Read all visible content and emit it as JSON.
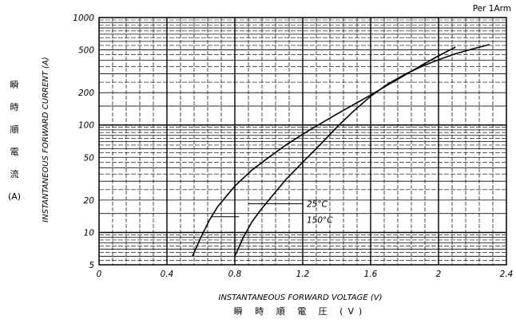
{
  "chart_data": {
    "type": "line",
    "note": "Per 1Arm",
    "xlabel": "INSTANTANEOUS FORWARD VOLTAGE (V)",
    "xlabel_jp": "瞬 時 順 電 圧 (V)",
    "ylabel": "INSTANTANEOUS FORWARD CURRENT (A)",
    "ylabel_jp": [
      "瞬",
      "時",
      "順",
      "電",
      "流",
      "(A)"
    ],
    "xlim": [
      0,
      2.4
    ],
    "ylim": [
      5,
      1000
    ],
    "yscale": "log",
    "x_ticks": [
      0,
      0.4,
      0.8,
      1.2,
      1.6,
      2,
      2.4
    ],
    "x_tick_labels": [
      "0",
      "0.4",
      "0.8",
      "1.2",
      "1.6",
      "2",
      "2.4"
    ],
    "y_ticks": [
      5,
      10,
      20,
      50,
      100,
      200,
      500,
      1000
    ],
    "y_tick_labels": [
      "5",
      "10",
      "20",
      "50",
      "100",
      "200",
      "500",
      "1000"
    ],
    "grid": true,
    "series": [
      {
        "name": "25°C",
        "label": "25°C",
        "x": [
          0.55,
          0.6,
          0.65,
          0.7,
          0.8,
          0.9,
          1.0,
          1.1,
          1.2,
          1.3,
          1.4,
          1.5,
          1.6,
          1.7,
          1.8,
          1.9,
          2.0,
          2.1
        ],
        "y": [
          6,
          9,
          13,
          17.5,
          27,
          38,
          50,
          65,
          82,
          102,
          126,
          155,
          190,
          235,
          290,
          360,
          440,
          530
        ]
      },
      {
        "name": "150°C",
        "label": "150°C",
        "x": [
          0.8,
          0.85,
          0.9,
          0.95,
          1.0,
          1.1,
          1.2,
          1.3,
          1.4,
          1.5,
          1.6,
          1.7,
          1.8,
          1.9,
          2.0,
          2.1,
          2.2,
          2.3
        ],
        "y": [
          6,
          9,
          12.5,
          16,
          20,
          31,
          45,
          65,
          95,
          135,
          185,
          240,
          295,
          350,
          405,
          460,
          510,
          560
        ]
      }
    ]
  }
}
